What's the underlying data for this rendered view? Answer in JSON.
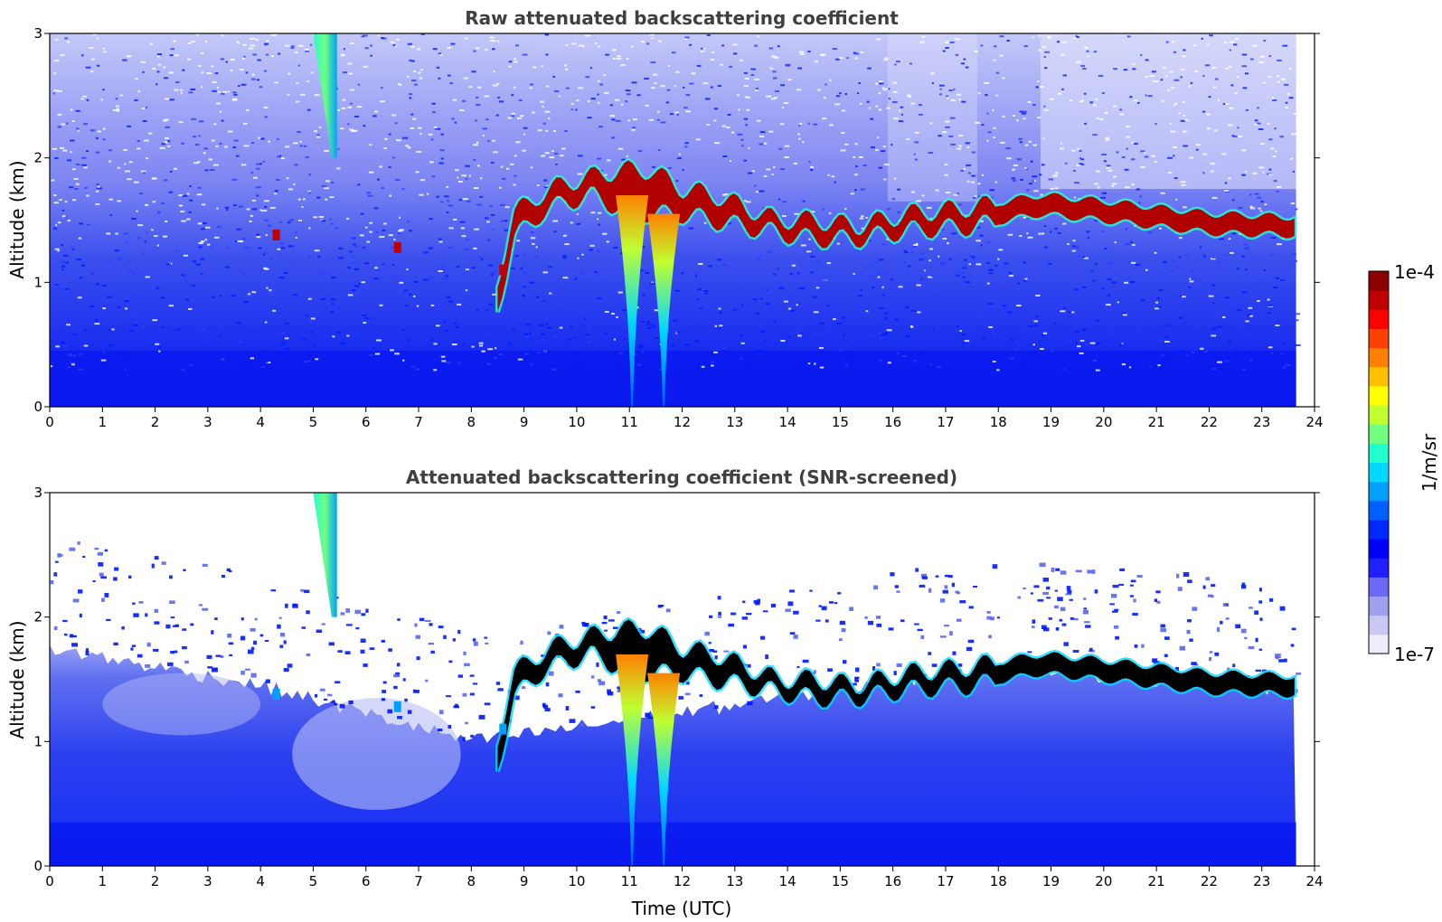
{
  "chart_data": [
    {
      "type": "heatmap",
      "title": "Raw attenuated backscattering coefficient",
      "xlabel": "",
      "ylabel": "Altitude (km)",
      "xlim": [
        0,
        24
      ],
      "ylim": [
        0,
        3
      ],
      "x_ticks": [
        "0",
        "1",
        "2",
        "3",
        "4",
        "5",
        "6",
        "7",
        "8",
        "9",
        "10",
        "11",
        "12",
        "13",
        "14",
        "15",
        "16",
        "17",
        "18",
        "19",
        "20",
        "21",
        "22",
        "23",
        "24"
      ],
      "y_ticks": [
        "0",
        "1",
        "2",
        "3"
      ],
      "data_end_time": 23.65,
      "background_noise": true,
      "cloud_layer": [
        {
          "t": 8.5,
          "base": 0.8,
          "top": 1.0
        },
        {
          "t": 8.8,
          "base": 1.35,
          "top": 1.55
        },
        {
          "t": 9.3,
          "base": 1.55,
          "top": 1.7
        },
        {
          "t": 9.8,
          "base": 1.65,
          "top": 1.8
        },
        {
          "t": 10.3,
          "base": 1.7,
          "top": 1.85
        },
        {
          "t": 10.8,
          "base": 1.6,
          "top": 1.9
        },
        {
          "t": 11.4,
          "base": 1.55,
          "top": 1.9
        },
        {
          "t": 12.0,
          "base": 1.55,
          "top": 1.75
        },
        {
          "t": 12.6,
          "base": 1.5,
          "top": 1.7
        },
        {
          "t": 13.2,
          "base": 1.45,
          "top": 1.6
        },
        {
          "t": 13.8,
          "base": 1.4,
          "top": 1.5
        },
        {
          "t": 14.5,
          "base": 1.35,
          "top": 1.5
        },
        {
          "t": 15.3,
          "base": 1.35,
          "top": 1.45
        },
        {
          "t": 16.3,
          "base": 1.42,
          "top": 1.55
        },
        {
          "t": 17.5,
          "base": 1.45,
          "top": 1.6
        },
        {
          "t": 18.8,
          "base": 1.55,
          "top": 1.7
        },
        {
          "t": 20.0,
          "base": 1.5,
          "top": 1.65
        },
        {
          "t": 21.0,
          "base": 1.45,
          "top": 1.6
        },
        {
          "t": 22.0,
          "base": 1.4,
          "top": 1.55
        },
        {
          "t": 23.65,
          "base": 1.38,
          "top": 1.52
        }
      ],
      "precipitation_streaks": [
        {
          "t": 11.05,
          "from": 0.0,
          "to": 1.7
        },
        {
          "t": 11.65,
          "from": 0.0,
          "to": 1.55
        }
      ],
      "fall_streak": {
        "t_start": 5.0,
        "t_end": 5.5,
        "from": 2.0,
        "to": 3.0
      }
    },
    {
      "type": "heatmap",
      "title": "Attenuated backscattering coefficient (SNR-screened)",
      "xlabel": "Time (UTC)",
      "ylabel": "Altitude (km)",
      "xlim": [
        0,
        24
      ],
      "ylim": [
        0,
        3
      ],
      "x_ticks": [
        "0",
        "1",
        "2",
        "3",
        "4",
        "5",
        "6",
        "7",
        "8",
        "9",
        "10",
        "11",
        "12",
        "13",
        "14",
        "15",
        "16",
        "17",
        "18",
        "19",
        "20",
        "21",
        "22",
        "23",
        "24"
      ],
      "y_ticks": [
        "0",
        "1",
        "2",
        "3"
      ],
      "data_end_time": 23.65,
      "background_noise": false,
      "boundary_layer_top": [
        {
          "t": 0,
          "h": 1.75
        },
        {
          "t": 4,
          "h": 1.45
        },
        {
          "t": 8,
          "h": 1.0
        },
        {
          "t": 14,
          "h": 1.35
        },
        {
          "t": 18,
          "h": 1.6
        },
        {
          "t": 23.65,
          "h": 1.4
        }
      ]
    }
  ],
  "colorbar": {
    "label": "1/m/sr",
    "min_label": "1e-7",
    "max_label": "1e-4",
    "scale": "log",
    "colors": [
      "#ececfb",
      "#c8c8f5",
      "#a0a0f0",
      "#6a6af5",
      "#2020ff",
      "#0000ff",
      "#0028ff",
      "#0060ff",
      "#00a0ff",
      "#00d8ff",
      "#20ffd0",
      "#70ff80",
      "#c0ff30",
      "#ffff00",
      "#ffc000",
      "#ff8000",
      "#ff4000",
      "#ff0000",
      "#c00000",
      "#8b0000"
    ],
    "screened_peak_color": "#000000"
  }
}
